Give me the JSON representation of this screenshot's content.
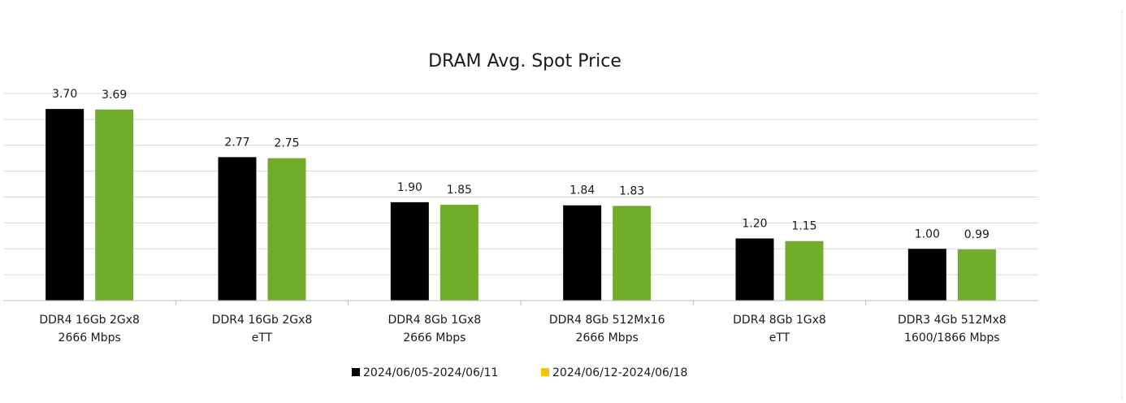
{
  "chart_data": {
    "type": "bar",
    "title": "DRAM Avg. Spot Price",
    "categories": [
      [
        "DDR4 16Gb 2Gx8",
        "2666 Mbps"
      ],
      [
        "DDR4 16Gb 2Gx8",
        "eTT"
      ],
      [
        "DDR4 8Gb 1Gx8",
        "2666 Mbps"
      ],
      [
        "DDR4 8Gb 512Mx16",
        "2666 Mbps"
      ],
      [
        "DDR4 8Gb 1Gx8",
        "eTT"
      ],
      [
        "DDR3 4Gb 512Mx8",
        "1600/1866 Mbps"
      ]
    ],
    "series": [
      {
        "name": "2024/06/05-2024/06/11",
        "color": "#000000",
        "values": [
          3.7,
          2.77,
          1.9,
          1.84,
          1.2,
          1.0
        ],
        "labels": [
          "3.70",
          "2.77",
          "1.90",
          "1.84",
          "1.20",
          "1.00"
        ]
      },
      {
        "name": "2024/06/12-2024/06/18",
        "color": "#70ad2b",
        "legend_color": "#ffc000",
        "values": [
          3.69,
          2.75,
          1.85,
          1.83,
          1.15,
          0.99
        ],
        "labels": [
          "3.69",
          "2.75",
          "1.85",
          "1.83",
          "1.15",
          "0.99"
        ]
      }
    ],
    "ylim": [
      0,
      4
    ],
    "gridlines": [
      0,
      0.5,
      1.0,
      1.5,
      2.0,
      2.5,
      3.0,
      3.5,
      4.0
    ],
    "grid": true,
    "legend_position": "bottom",
    "xlabel": "",
    "ylabel": ""
  }
}
